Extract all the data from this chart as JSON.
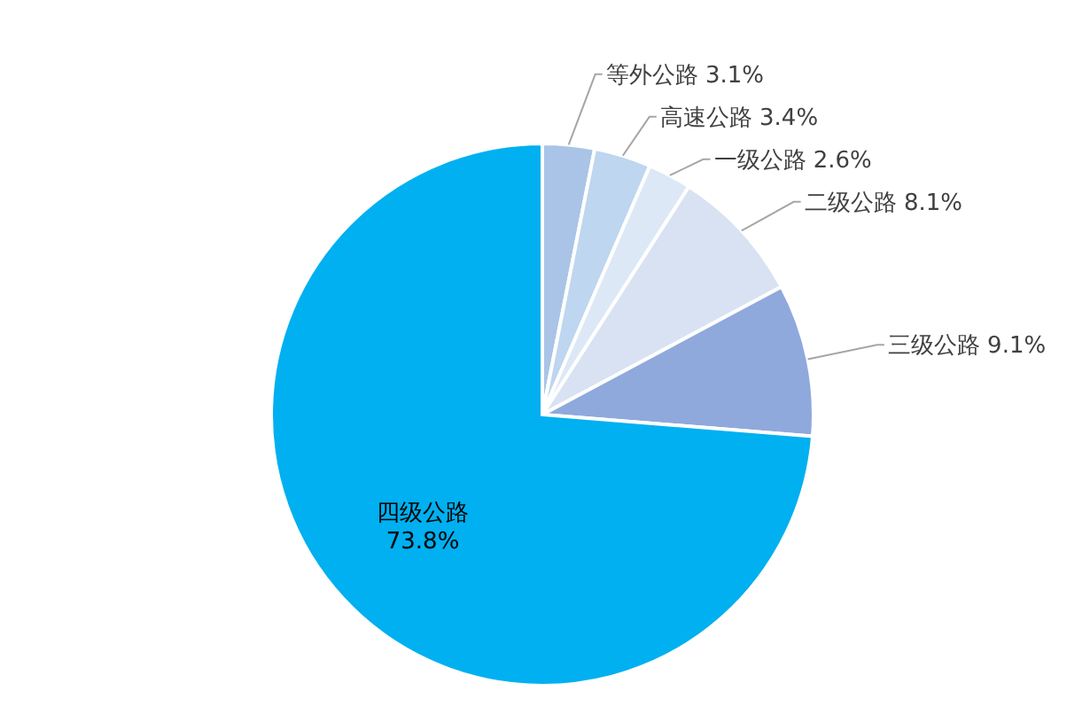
{
  "chart_data": {
    "type": "pie",
    "categories": [
      "等外公路",
      "高速公路",
      "一级公路",
      "二级公路",
      "三级公路",
      "四级公路"
    ],
    "values": [
      3.1,
      3.4,
      2.6,
      8.1,
      9.1,
      73.8
    ],
    "value_labels": [
      "3.1%",
      "3.4%",
      "2.6%",
      "8.1%",
      "9.1%",
      "73.8%"
    ],
    "colors": [
      "#a9c4e6",
      "#bed6ef",
      "#dde8f6",
      "#d9e2f2",
      "#8fa9dc",
      "#00b0f0"
    ]
  }
}
